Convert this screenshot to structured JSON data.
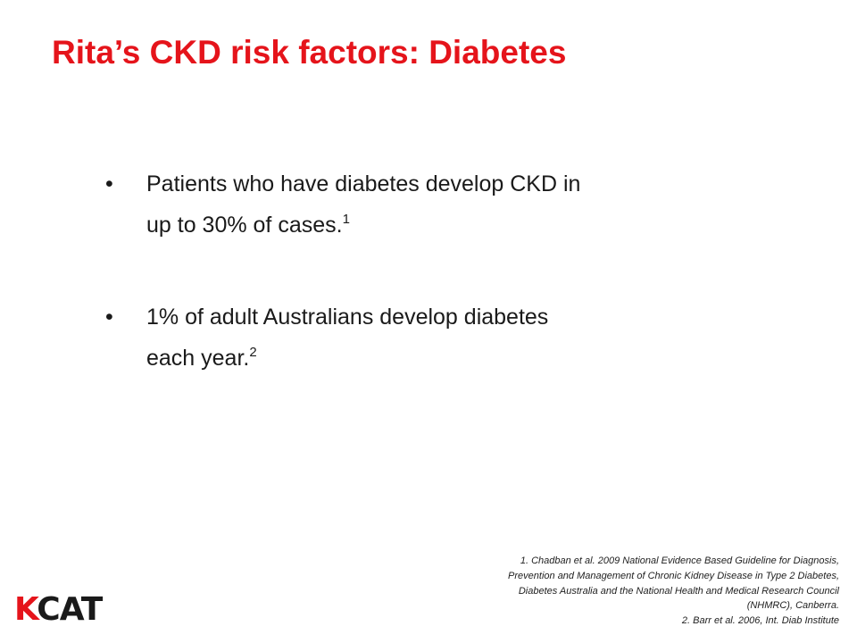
{
  "header": {
    "title": "Rita’s CKD risk factors: Diabetes"
  },
  "bullets": [
    {
      "lines": [
        "Patients who have diabetes develop CKD in",
        "up to 30% of cases."
      ],
      "ref": "1"
    },
    {
      "lines": [
        "1% of adult Australians develop diabetes",
        "each year."
      ],
      "ref": "2"
    }
  ],
  "references": [
    "1. Chadban et al. 2009 National Evidence Based Guideline for Diagnosis,",
    "Prevention and Management of Chronic Kidney Disease in Type 2 Diabetes,",
    "Diabetes Australia and the National Health and Medical Research Council",
    "(NHMRC), Canberra.",
    "2.  Barr et al. 2006, Int. Diab Institute"
  ],
  "logo": "KCAT"
}
